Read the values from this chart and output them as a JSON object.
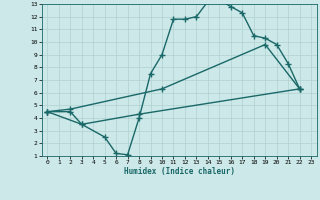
{
  "bg_color": "#cce8e8",
  "grid_color": "#b0d0d0",
  "line_color": "#1a6868",
  "marker": "+",
  "markersize": 4,
  "linewidth": 1.0,
  "xlabel": "Humidex (Indice chaleur)",
  "xlim": [
    -0.5,
    23.5
  ],
  "ylim": [
    1,
    13
  ],
  "xticks": [
    0,
    1,
    2,
    3,
    4,
    5,
    6,
    7,
    8,
    9,
    10,
    11,
    12,
    13,
    14,
    15,
    16,
    17,
    18,
    19,
    20,
    21,
    22,
    23
  ],
  "yticks": [
    1,
    2,
    3,
    4,
    5,
    6,
    7,
    8,
    9,
    10,
    11,
    12,
    13
  ],
  "line1_x": [
    0,
    2,
    3,
    5,
    6,
    7,
    8,
    9,
    10,
    11,
    12,
    13,
    14,
    15,
    16,
    17,
    18,
    19,
    20,
    21,
    22
  ],
  "line1_y": [
    4.5,
    4.5,
    3.5,
    2.5,
    1.2,
    1.1,
    4.0,
    7.5,
    9.0,
    11.8,
    11.8,
    12.0,
    13.2,
    13.3,
    12.8,
    12.3,
    10.5,
    10.3,
    9.8,
    8.3,
    6.3
  ],
  "line2_x": [
    0,
    2,
    10,
    19,
    22
  ],
  "line2_y": [
    4.5,
    4.7,
    6.3,
    9.8,
    6.3
  ],
  "line3_x": [
    0,
    3,
    8,
    22
  ],
  "line3_y": [
    4.5,
    3.5,
    4.3,
    6.3
  ]
}
